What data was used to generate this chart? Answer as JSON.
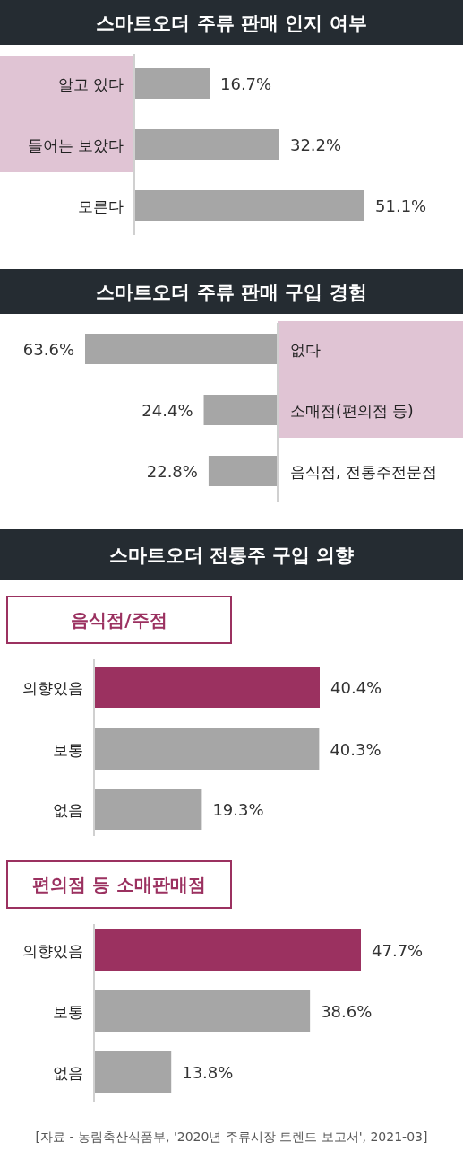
{
  "chart_data": [
    {
      "type": "bar",
      "orientation": "horizontal",
      "title": "스마트오더 주류 판매 인지 여부",
      "categories": [
        "알고 있다",
        "들어는 보았다",
        "모른다"
      ],
      "values": [
        16.7,
        32.2,
        51.1
      ],
      "color": "#a6a6a6",
      "value_labels": [
        "16.7%",
        "32.2%",
        "51.1%"
      ]
    },
    {
      "type": "bar",
      "orientation": "horizontal",
      "title": "스마트오더 주류 판매 구입 경험",
      "categories": [
        "없다",
        "소매점(편의점 등)",
        "음식점, 전통주전문점"
      ],
      "values": [
        63.6,
        24.4,
        22.8
      ],
      "color": "#a6a6a6",
      "value_labels": [
        "63.6%",
        "24.4%",
        "22.8%"
      ]
    },
    {
      "type": "bar",
      "orientation": "horizontal",
      "title": "스마트오더 전통주 구입 의향",
      "subtitle": "음식점/주점",
      "categories": [
        "의향있음",
        "보통",
        "없음"
      ],
      "values": [
        40.4,
        40.3,
        19.3
      ],
      "colors": [
        "#9b3160",
        "#a6a6a6",
        "#a6a6a6"
      ],
      "value_labels": [
        "40.4%",
        "40.3%",
        "19.3%"
      ]
    },
    {
      "type": "bar",
      "orientation": "horizontal",
      "subtitle": "편의점 등 소매판매점",
      "categories": [
        "의향있음",
        "보통",
        "없음"
      ],
      "values": [
        47.7,
        38.6,
        13.8
      ],
      "colors": [
        "#9b3160",
        "#a6a6a6",
        "#a6a6a6"
      ],
      "value_labels": [
        "47.7%",
        "38.6%",
        "13.8%"
      ],
      "annotations": [
        "[자료 - 농림축산식품부, '2020년 주류시장 트렌드 보고서', 2021-03]"
      ]
    }
  ]
}
